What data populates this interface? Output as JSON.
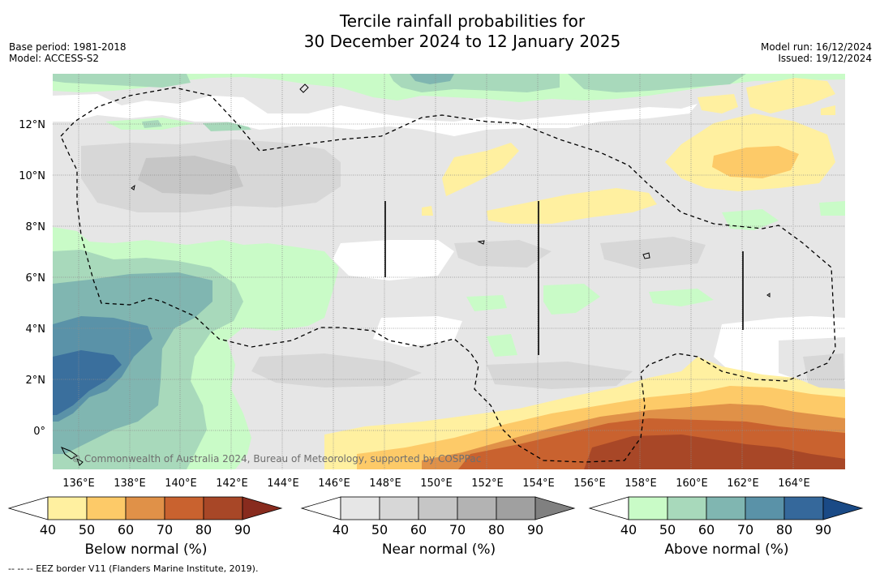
{
  "title": {
    "line1": "Tercile rainfall probabilities for",
    "line2": "30 December 2024 to 12 January 2025"
  },
  "info_left": {
    "base_period": "Base period: 1981-2018",
    "model": "Model: ACCESS-S2"
  },
  "info_right": {
    "model_run": "Model run: 16/12/2024",
    "issued": "Issued: 19/12/2024"
  },
  "map": {
    "lat_labels": [
      "12°N",
      "10°N",
      "8°N",
      "6°N",
      "4°N",
      "2°N",
      "0°"
    ],
    "lat_values": [
      12,
      10,
      8,
      6,
      4,
      2,
      0
    ],
    "lon_labels": [
      "136°E",
      "138°E",
      "140°E",
      "142°E",
      "144°E",
      "146°E",
      "148°E",
      "150°E",
      "152°E",
      "154°E",
      "156°E",
      "158°E",
      "160°E",
      "162°E",
      "164°E"
    ],
    "lon_values": [
      136,
      138,
      140,
      142,
      144,
      146,
      148,
      150,
      152,
      154,
      156,
      158,
      160,
      162,
      164
    ],
    "copyright": "© Commonwealth of Australia 2024, Bureau of Meteorology, supported by COSPPac"
  },
  "colorbars": [
    {
      "name": "below",
      "label": "Below normal (%)",
      "ticks": [
        "40",
        "50",
        "60",
        "70",
        "80",
        "90"
      ],
      "colors": [
        "#ffffff",
        "#fff0a0",
        "#fdca68",
        "#e09148",
        "#c9622f",
        "#a84727",
        "#882b1e"
      ]
    },
    {
      "name": "near",
      "label": "Near normal (%)",
      "ticks": [
        "40",
        "50",
        "60",
        "70",
        "80",
        "90"
      ],
      "colors": [
        "#ffffff",
        "#e6e6e6",
        "#d7d7d7",
        "#c6c6c6",
        "#b3b3b3",
        "#a0a0a0",
        "#808080"
      ]
    },
    {
      "name": "above",
      "label": "Above normal (%)",
      "ticks": [
        "40",
        "50",
        "60",
        "70",
        "80",
        "90"
      ],
      "colors": [
        "#ffffff",
        "#c9fbc7",
        "#a8d9bb",
        "#80b6b1",
        "#5a92a8",
        "#35689b",
        "#1a4a86"
      ]
    }
  ],
  "footnote": "--  --  -- EEZ border V11 (Flanders Marine Institute, 2019)."
}
